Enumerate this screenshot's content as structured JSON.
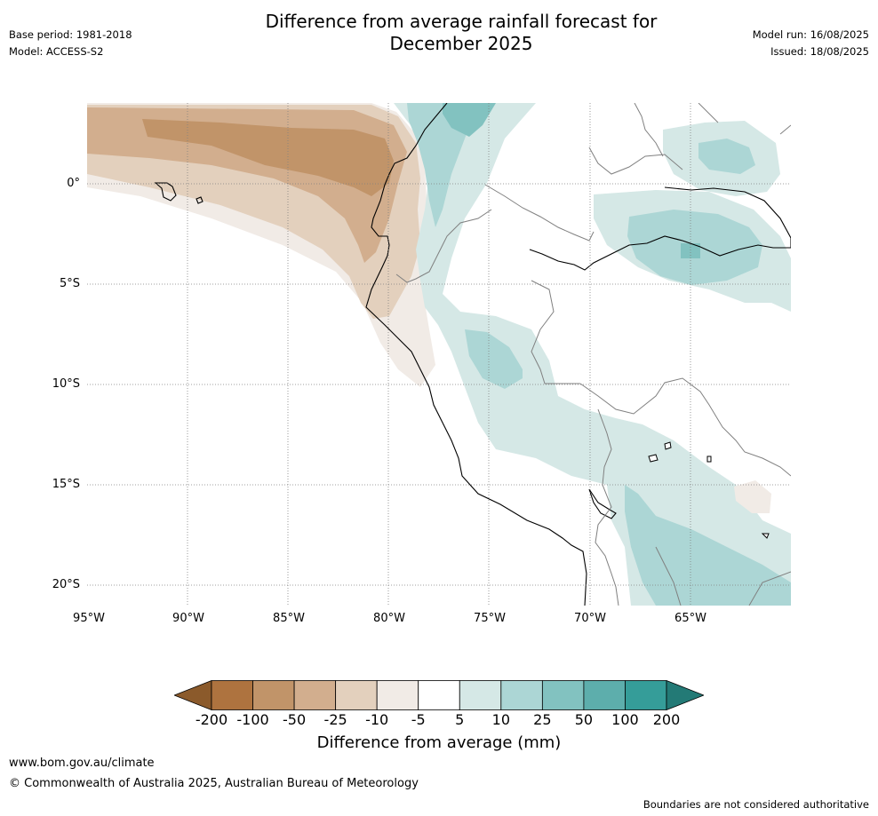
{
  "header": {
    "base_period": "Base period: 1981-2018",
    "model": "Model: ACCESS-S2",
    "title_line1": "Difference from average rainfall forecast for",
    "title_line2": "December 2025",
    "model_run": "Model run: 16/08/2025",
    "issued": "Issued: 18/08/2025"
  },
  "map": {
    "lat_labels": [
      "0°",
      "5°S",
      "10°S",
      "15°S",
      "20°S"
    ],
    "lon_labels": [
      "95°W",
      "90°W",
      "85°W",
      "80°W",
      "75°W",
      "70°W",
      "65°W"
    ],
    "colors": {
      "ocean_land_bg": "#ffffff",
      "coastline": "#000000",
      "borders": "#808080",
      "gridlines": "#808080"
    }
  },
  "legend": {
    "tick_labels": [
      "-200",
      "-100",
      "-50",
      "-25",
      "-10",
      "-5",
      "5",
      "10",
      "25",
      "50",
      "100",
      "200"
    ],
    "colors": [
      "#8b5a2b",
      "#ae733f",
      "#c19469",
      "#d2ae8e",
      "#e3d0bd",
      "#f1ebe6",
      "#ffffff",
      "#d5e8e6",
      "#acd6d5",
      "#82c2c0",
      "#5daeac",
      "#359d99",
      "#237a76"
    ],
    "title": "Difference from average (mm)"
  },
  "footer": {
    "url": "www.bom.gov.au/climate",
    "copyright": "© Commonwealth of Australia 2025, Australian Bureau of Meteorology",
    "note": "Boundaries are not considered authoritative"
  }
}
